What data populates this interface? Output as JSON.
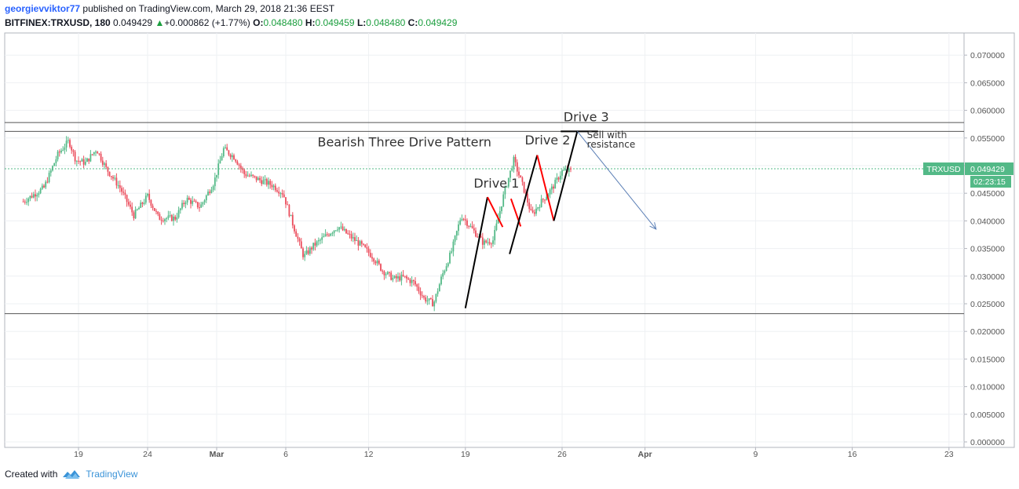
{
  "header": {
    "user": "georgievviktor77",
    "published_text": "published on TradingView.com, March 29, 2018 21:36 EEST",
    "symbol": "BITFINEX:TRXUSD, 180",
    "last": "0.049429",
    "change": "+0.000862 (+1.77%)",
    "open_label": "O:",
    "open": "0.048480",
    "high_label": "H:",
    "high": "0.049459",
    "low_label": "L:",
    "low": "0.048480",
    "close_label": "C:",
    "close": "0.049429"
  },
  "footer": {
    "created_with": "Created with",
    "brand": "TradingView"
  },
  "colors": {
    "up": "#53b987",
    "down": "#eb4d5c",
    "grid": "#eef0f3",
    "projection": "#5b7fb5",
    "price_tag": "#53b987"
  },
  "chart_data": {
    "type": "candlestick",
    "symbol": "TRXUSD",
    "price_tag": "0.049429",
    "countdown": "02:23:15",
    "ylim": [
      0.0,
      0.073
    ],
    "y_ticks": [
      "0.070000",
      "0.065000",
      "0.060000",
      "0.055000",
      "0.050000",
      "0.045000",
      "0.040000",
      "0.035000",
      "0.030000",
      "0.025000",
      "0.020000",
      "0.015000",
      "0.010000",
      "0.005000",
      "0.000000"
    ],
    "x_range": [
      15,
      59
    ],
    "x_ticks": [
      {
        "t": 19,
        "label": "19"
      },
      {
        "t": 24,
        "label": "24"
      },
      {
        "t": 29,
        "label": "Mar"
      },
      {
        "t": 34,
        "label": "6"
      },
      {
        "t": 40,
        "label": "12"
      },
      {
        "t": 47,
        "label": "19"
      },
      {
        "t": 54,
        "label": "26"
      },
      {
        "t": 60,
        "label": "Apr"
      },
      {
        "t": 68,
        "label": "9"
      },
      {
        "t": 75,
        "label": "16"
      },
      {
        "t": 82,
        "label": "23"
      }
    ],
    "price_path": [
      [
        15.0,
        0.0435
      ],
      [
        16.5,
        0.046
      ],
      [
        17.5,
        0.052
      ],
      [
        18.3,
        0.0545
      ],
      [
        18.8,
        0.051
      ],
      [
        19.5,
        0.0505
      ],
      [
        20.3,
        0.053
      ],
      [
        21.0,
        0.0495
      ],
      [
        22.0,
        0.046
      ],
      [
        23.0,
        0.041
      ],
      [
        24.0,
        0.0445
      ],
      [
        24.8,
        0.0405
      ],
      [
        26.0,
        0.0405
      ],
      [
        26.8,
        0.044
      ],
      [
        27.8,
        0.0425
      ],
      [
        28.8,
        0.047
      ],
      [
        29.5,
        0.053
      ],
      [
        30.3,
        0.0515
      ],
      [
        31.0,
        0.0485
      ],
      [
        32.0,
        0.0475
      ],
      [
        33.0,
        0.0465
      ],
      [
        33.8,
        0.045
      ],
      [
        34.5,
        0.0395
      ],
      [
        35.3,
        0.0335
      ],
      [
        36.0,
        0.0355
      ],
      [
        37.0,
        0.0375
      ],
      [
        37.8,
        0.039
      ],
      [
        38.5,
        0.0375
      ],
      [
        39.5,
        0.0355
      ],
      [
        40.3,
        0.0335
      ],
      [
        41.0,
        0.031
      ],
      [
        41.8,
        0.0295
      ],
      [
        42.5,
        0.0298
      ],
      [
        43.3,
        0.0288
      ],
      [
        44.0,
        0.026
      ],
      [
        44.7,
        0.025
      ],
      [
        45.3,
        0.03
      ],
      [
        46.0,
        0.0345
      ],
      [
        46.7,
        0.041
      ],
      [
        47.5,
        0.0385
      ],
      [
        48.3,
        0.036
      ],
      [
        49.0,
        0.0365
      ],
      [
        49.8,
        0.045
      ],
      [
        50.5,
        0.051
      ],
      [
        51.2,
        0.046
      ],
      [
        51.8,
        0.041
      ],
      [
        52.5,
        0.0435
      ],
      [
        53.3,
        0.046
      ],
      [
        54.0,
        0.049
      ],
      [
        54.7,
        0.049
      ]
    ],
    "price_lines": [
      0.0578,
      0.0562,
      0.0232
    ],
    "last_price_line": 0.049429,
    "drive_legs": [
      {
        "color": "black",
        "points": [
          [
            47.0,
            0.0242
          ],
          [
            48.6,
            0.0443
          ]
        ]
      },
      {
        "color": "red",
        "points": [
          [
            48.6,
            0.0443
          ],
          [
            49.7,
            0.0389
          ]
        ]
      },
      {
        "color": "red",
        "points": [
          [
            50.3,
            0.044
          ],
          [
            51.0,
            0.039
          ]
        ]
      },
      {
        "color": "black",
        "points": [
          [
            50.2,
            0.034
          ],
          [
            52.2,
            0.0519
          ]
        ]
      },
      {
        "color": "red",
        "points": [
          [
            52.2,
            0.0519
          ],
          [
            53.4,
            0.04
          ]
        ]
      },
      {
        "color": "black",
        "points": [
          [
            53.4,
            0.04
          ],
          [
            55.1,
            0.0562
          ]
        ]
      },
      {
        "color": "black",
        "points": [
          [
            53.9,
            0.0562
          ],
          [
            56.6,
            0.0562
          ]
        ]
      }
    ],
    "projection_arrow": [
      [
        55.1,
        0.0562
      ],
      [
        60.8,
        0.0385
      ]
    ],
    "annotations": [
      {
        "text": "Bearish Three Drive Pattern",
        "t": 36.3,
        "y": 0.0535,
        "size": 16
      },
      {
        "text": "Drive 1",
        "t": 47.6,
        "y": 0.046,
        "size": 16
      },
      {
        "text": "Drive 2",
        "t": 51.3,
        "y": 0.0538,
        "size": 16
      },
      {
        "text": "Drive 3",
        "t": 54.1,
        "y": 0.058,
        "size": 16
      },
      {
        "text": "Sell with",
        "t": 55.8,
        "y": 0.055,
        "size": 12
      },
      {
        "text": "resistance",
        "t": 55.8,
        "y": 0.0533,
        "size": 12
      }
    ]
  }
}
